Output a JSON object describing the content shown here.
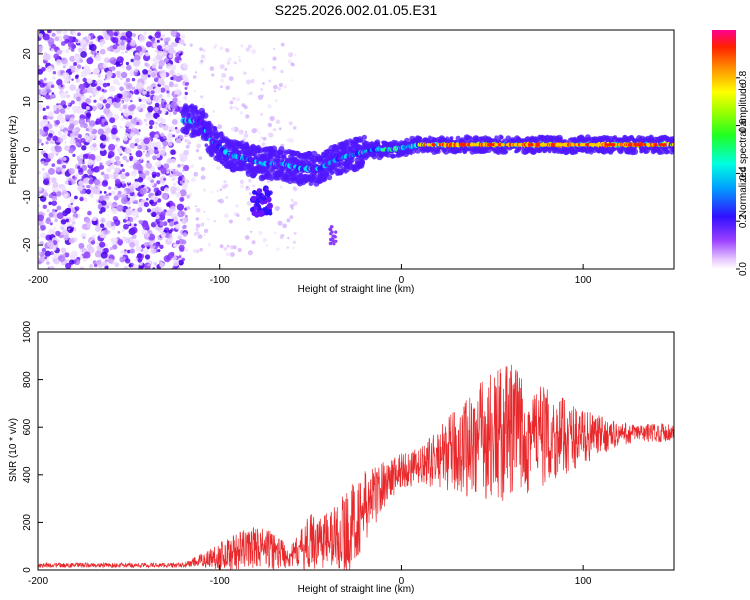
{
  "title": "S225.2026.002.01.05.E31",
  "chart_data": [
    {
      "type": "heatmap",
      "xlabel": "Height of straight line (km)",
      "ylabel": "Frequency (Hz)",
      "xlim": [
        -200,
        150
      ],
      "ylim": [
        -25,
        25
      ],
      "xticks": [
        -200,
        -100,
        0,
        100
      ],
      "yticks": [
        -20,
        -10,
        0,
        10,
        20
      ],
      "colorbar": {
        "label": "Normalized spectral amplitude",
        "range": [
          0,
          1
        ],
        "ticks": [
          "0.0",
          "0.2",
          "0.4",
          "0.6",
          "0.8"
        ]
      },
      "ridge": [
        {
          "x": -120,
          "y": 6
        },
        {
          "x": -110,
          "y": 6
        },
        {
          "x": -105,
          "y": 2
        },
        {
          "x": -95,
          "y": -1
        },
        {
          "x": -85,
          "y": -2
        },
        {
          "x": -75,
          "y": -3
        },
        {
          "x": -65,
          "y": -3
        },
        {
          "x": -55,
          "y": -4
        },
        {
          "x": -45,
          "y": -4
        },
        {
          "x": -35,
          "y": -2
        },
        {
          "x": -25,
          "y": -1
        },
        {
          "x": -15,
          "y": 0
        },
        {
          "x": -5,
          "y": 0
        },
        {
          "x": 10,
          "y": 1
        },
        {
          "x": 30,
          "y": 1
        },
        {
          "x": 50,
          "y": 1
        },
        {
          "x": 70,
          "y": 1
        },
        {
          "x": 90,
          "y": 1
        },
        {
          "x": 110,
          "y": 1
        },
        {
          "x": 130,
          "y": 1
        },
        {
          "x": 150,
          "y": 1
        }
      ]
    },
    {
      "type": "line",
      "xlabel": "Height of straight line (km)",
      "ylabel": "SNR (10 * v/v)",
      "xlim": [
        -200,
        150
      ],
      "ylim": [
        0,
        1000
      ],
      "xticks": [
        -200,
        -100,
        0,
        100
      ],
      "yticks": [
        0,
        200,
        400,
        600,
        800,
        1000
      ],
      "color": "#e8282b",
      "series_envelope": [
        {
          "x": -200,
          "base": 20,
          "spread": 10
        },
        {
          "x": -120,
          "base": 20,
          "spread": 10
        },
        {
          "x": -110,
          "base": 40,
          "spread": 30
        },
        {
          "x": -100,
          "base": 60,
          "spread": 60
        },
        {
          "x": -90,
          "base": 80,
          "spread": 80
        },
        {
          "x": -80,
          "base": 100,
          "spread": 90
        },
        {
          "x": -70,
          "base": 80,
          "spread": 80
        },
        {
          "x": -60,
          "base": 60,
          "spread": 50
        },
        {
          "x": -50,
          "base": 120,
          "spread": 120
        },
        {
          "x": -40,
          "base": 130,
          "spread": 120
        },
        {
          "x": -30,
          "base": 160,
          "spread": 180
        },
        {
          "x": -20,
          "base": 260,
          "spread": 160
        },
        {
          "x": -10,
          "base": 360,
          "spread": 100
        },
        {
          "x": 0,
          "base": 420,
          "spread": 80
        },
        {
          "x": 10,
          "base": 430,
          "spread": 80
        },
        {
          "x": 20,
          "base": 470,
          "spread": 120
        },
        {
          "x": 30,
          "base": 500,
          "spread": 180
        },
        {
          "x": 40,
          "base": 540,
          "spread": 240
        },
        {
          "x": 50,
          "base": 560,
          "spread": 280
        },
        {
          "x": 60,
          "base": 580,
          "spread": 300
        },
        {
          "x": 70,
          "base": 570,
          "spread": 250
        },
        {
          "x": 80,
          "base": 560,
          "spread": 200
        },
        {
          "x": 90,
          "base": 560,
          "spread": 160
        },
        {
          "x": 100,
          "base": 560,
          "spread": 120
        },
        {
          "x": 110,
          "base": 565,
          "spread": 80
        },
        {
          "x": 120,
          "base": 570,
          "spread": 50
        },
        {
          "x": 130,
          "base": 575,
          "spread": 40
        },
        {
          "x": 150,
          "base": 580,
          "spread": 40
        }
      ]
    }
  ]
}
